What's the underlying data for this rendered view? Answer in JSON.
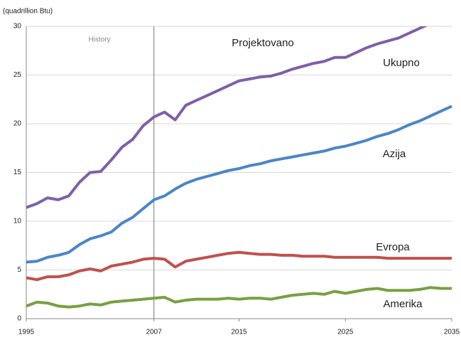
{
  "chart_data": {
    "type": "line",
    "y_label": "(quadrillion Btu)",
    "annotations": [
      "History",
      "Projektovano"
    ],
    "x": [
      1995,
      1996,
      1997,
      1998,
      1999,
      2000,
      2001,
      2002,
      2003,
      2004,
      2005,
      2006,
      2007,
      2008,
      2009,
      2010,
      2011,
      2012,
      2013,
      2014,
      2015,
      2016,
      2017,
      2018,
      2019,
      2020,
      2021,
      2022,
      2023,
      2024,
      2025,
      2026,
      2027,
      2028,
      2029,
      2030,
      2031,
      2032,
      2033,
      2034,
      2035
    ],
    "series": [
      {
        "name": "Ukupno",
        "color": "#7f5fa8",
        "values": [
          11.4,
          11.8,
          12.4,
          12.2,
          12.6,
          14.0,
          15.0,
          15.1,
          16.3,
          17.6,
          18.4,
          19.8,
          20.7,
          21.2,
          20.4,
          21.9,
          22.4,
          22.9,
          23.4,
          23.9,
          24.4,
          24.6,
          24.8,
          24.9,
          25.2,
          25.6,
          25.9,
          26.2,
          26.4,
          26.8,
          26.8,
          27.3,
          27.8,
          28.2,
          28.5,
          28.8,
          29.3,
          29.8,
          30.3,
          30.7,
          31.1
        ]
      },
      {
        "name": "Azija",
        "color": "#4a86c8",
        "values": [
          5.8,
          5.9,
          6.3,
          6.5,
          6.8,
          7.6,
          8.2,
          8.5,
          8.9,
          9.8,
          10.4,
          11.3,
          12.2,
          12.6,
          13.3,
          13.9,
          14.3,
          14.6,
          14.9,
          15.2,
          15.4,
          15.7,
          15.9,
          16.2,
          16.4,
          16.6,
          16.8,
          17.0,
          17.2,
          17.5,
          17.7,
          18.0,
          18.3,
          18.7,
          19.0,
          19.4,
          19.9,
          20.3,
          20.8,
          21.3,
          21.8
        ]
      },
      {
        "name": "Evropa",
        "color": "#c0504d",
        "values": [
          4.2,
          4.0,
          4.3,
          4.3,
          4.5,
          4.9,
          5.1,
          4.9,
          5.4,
          5.6,
          5.8,
          6.1,
          6.2,
          6.1,
          5.3,
          5.9,
          6.1,
          6.3,
          6.5,
          6.7,
          6.8,
          6.7,
          6.6,
          6.6,
          6.5,
          6.5,
          6.4,
          6.4,
          6.4,
          6.3,
          6.3,
          6.3,
          6.3,
          6.3,
          6.2,
          6.2,
          6.2,
          6.2,
          6.2,
          6.2,
          6.2
        ]
      },
      {
        "name": "Amerika",
        "color": "#77a03f",
        "values": [
          1.3,
          1.7,
          1.6,
          1.3,
          1.2,
          1.3,
          1.5,
          1.4,
          1.7,
          1.8,
          1.9,
          2.0,
          2.1,
          2.2,
          1.7,
          1.9,
          2.0,
          2.0,
          2.0,
          2.1,
          2.0,
          2.1,
          2.1,
          2.0,
          2.2,
          2.4,
          2.5,
          2.6,
          2.5,
          2.8,
          2.6,
          2.8,
          3.0,
          3.1,
          2.9,
          2.9,
          2.9,
          3.0,
          3.2,
          3.1,
          3.1
        ]
      }
    ],
    "xlim": [
      1995,
      2035
    ],
    "xticks": [
      1995,
      2007,
      2015,
      2025,
      2035
    ],
    "ylim": [
      0,
      30
    ],
    "yticks": [
      0,
      5,
      10,
      15,
      20,
      25,
      30
    ],
    "grid": true
  }
}
